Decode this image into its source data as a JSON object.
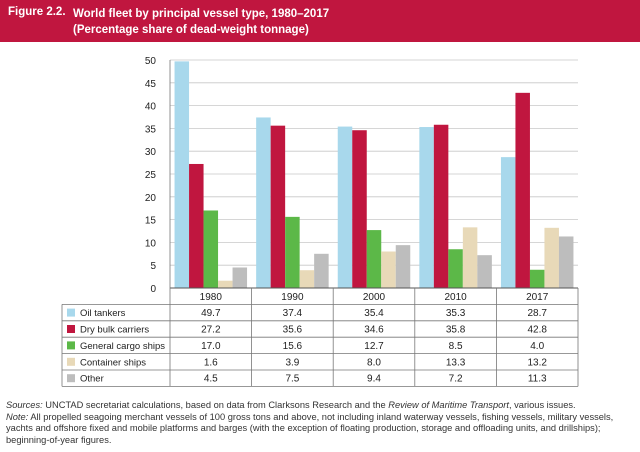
{
  "header": {
    "figure_label": "Figure 2.2.",
    "title_line1": "World fleet by principal vessel type, 1980–2017",
    "title_line2": "(Percentage share of dead-weight tonnage)"
  },
  "chart_data": {
    "type": "bar",
    "categories": [
      "1980",
      "1990",
      "2000",
      "2010",
      "2017"
    ],
    "ylim": [
      0,
      50
    ],
    "yticks": [
      0,
      5,
      10,
      15,
      20,
      25,
      30,
      35,
      40,
      45,
      50
    ],
    "grid": true,
    "legend_placement": "table-left",
    "series": [
      {
        "name": "Oil tankers",
        "color": "#a8d8ec",
        "values": [
          49.7,
          37.4,
          35.4,
          35.3,
          28.7
        ],
        "labels": [
          "49.7",
          "37.4",
          "35.4",
          "35.3",
          "28.7"
        ]
      },
      {
        "name": "Dry bulk carriers",
        "color": "#c0163f",
        "values": [
          27.2,
          35.6,
          34.6,
          35.8,
          42.8
        ],
        "labels": [
          "27.2",
          "35.6",
          "34.6",
          "35.8",
          "42.8"
        ]
      },
      {
        "name": "General cargo ships",
        "color": "#5cb848",
        "values": [
          17.0,
          15.6,
          12.7,
          8.5,
          4.0
        ],
        "labels": [
          "17.0",
          "15.6",
          "12.7",
          "8.5",
          "4.0"
        ]
      },
      {
        "name": "Container ships",
        "color": "#e8d9b8",
        "values": [
          1.6,
          3.9,
          8.0,
          13.3,
          13.2
        ],
        "labels": [
          "1.6",
          "3.9",
          "8.0",
          "13.3",
          "13.2"
        ]
      },
      {
        "name": "Other",
        "color": "#bdbdbd",
        "values": [
          4.5,
          7.5,
          9.4,
          7.2,
          11.3
        ],
        "labels": [
          "4.5",
          "7.5",
          "9.4",
          "7.2",
          "11.3"
        ]
      }
    ]
  },
  "notes": {
    "sources_label": "Sources:",
    "sources_pre": "UNCTAD secretariat calculations, based on data from Clarksons Research and the",
    "sources_italic": "Review of Maritime Transport",
    "sources_post": ", various issues.",
    "note_label": "Note:",
    "note_text": "All propelled seagoing merchant vessels of 100 gross tons and above, not including inland waterway vessels, fishing vessels, military vessels, yachts and offshore fixed and mobile platforms and barges (with the exception of floating production, storage and offloading units, and drillships); beginning-of-year figures."
  }
}
